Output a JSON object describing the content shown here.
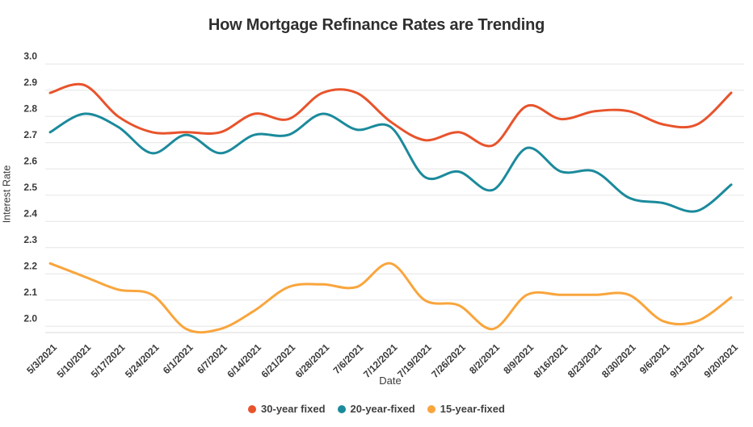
{
  "chart_data": {
    "type": "line",
    "title": "How Mortgage Refinance Rates are Trending",
    "xlabel": "Date",
    "ylabel": "Interest Rate",
    "ylim": [
      2.0,
      3.0
    ],
    "yticks": [
      3.0,
      2.9,
      2.8,
      2.7,
      2.6,
      2.5,
      2.4,
      2.3,
      2.2,
      2.1,
      2.0
    ],
    "grid": "horizontal",
    "legend_position": "bottom",
    "categories": [
      "5/3/2021",
      "5/10/2021",
      "5/17/2021",
      "5/24/2021",
      "6/1/2021",
      "6/7/2021",
      "6/14/2021",
      "6/21/2021",
      "6/28/2021",
      "7/6/2021",
      "7/12/2021",
      "7/19/2021",
      "7/26/2021",
      "8/2/2021",
      "8/9/2021",
      "8/16/2021",
      "8/23/2021",
      "8/30/2021",
      "9/6/2021",
      "9/13/2021",
      "9/20/2021"
    ],
    "series": [
      {
        "name": "30-year fixed",
        "color": "#e8532b",
        "values": [
          2.89,
          2.92,
          2.8,
          2.74,
          2.74,
          2.74,
          2.81,
          2.79,
          2.89,
          2.89,
          2.78,
          2.71,
          2.74,
          2.69,
          2.84,
          2.79,
          2.82,
          2.82,
          2.77,
          2.77,
          2.89
        ]
      },
      {
        "name": "20-year-fixed",
        "color": "#1b8a9c",
        "values": [
          2.74,
          2.81,
          2.76,
          2.66,
          2.73,
          2.66,
          2.73,
          2.73,
          2.81,
          2.75,
          2.76,
          2.57,
          2.59,
          2.52,
          2.68,
          2.59,
          2.59,
          2.49,
          2.47,
          2.44,
          2.54
        ]
      },
      {
        "name": "15-year-fixed",
        "color": "#f9a53c",
        "values": [
          2.24,
          2.19,
          2.14,
          2.12,
          1.99,
          1.99,
          2.06,
          2.15,
          2.16,
          2.15,
          2.24,
          2.1,
          2.08,
          1.99,
          2.12,
          2.12,
          2.12,
          2.12,
          2.02,
          2.02,
          2.11
        ]
      }
    ],
    "colors": {
      "title_text": "#2f2f2f",
      "axis_text": "#3a3a3a",
      "gridline": "#e5e5e5",
      "axis_line": "#d9d9d9"
    }
  }
}
